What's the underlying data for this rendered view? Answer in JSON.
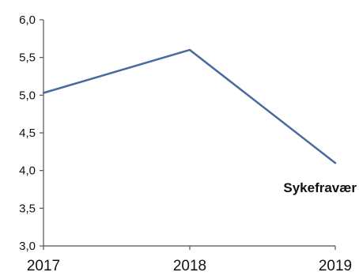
{
  "chart_data": {
    "type": "line",
    "categories": [
      "2017",
      "2018",
      "2019"
    ],
    "series": [
      {
        "name": "Sykefravær",
        "values": [
          5.03,
          5.6,
          4.1
        ],
        "color": "#4a6a9e"
      }
    ],
    "ylim": [
      3.0,
      6.0
    ],
    "yticks": [
      "3,0",
      "3,5",
      "4,0",
      "4,5",
      "5,0",
      "5,5",
      "6,0"
    ],
    "ytick_values": [
      3.0,
      3.5,
      4.0,
      4.5,
      5.0,
      5.5,
      6.0
    ],
    "grid": false,
    "legend": "inline-right"
  }
}
